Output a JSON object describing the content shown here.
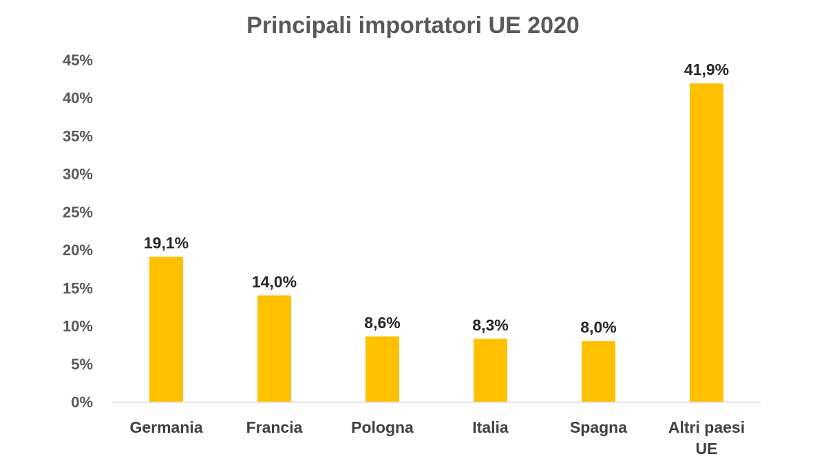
{
  "chart_data": {
    "type": "bar",
    "title": "Principali importatori UE 2020",
    "categories": [
      [
        "Germania"
      ],
      [
        "Francia"
      ],
      [
        "Pologna"
      ],
      [
        "Italia"
      ],
      [
        "Spagna"
      ],
      [
        "Altri paesi",
        "UE"
      ]
    ],
    "values": [
      19.1,
      14.0,
      8.6,
      8.3,
      8.0,
      41.9
    ],
    "data_labels": [
      "19,1%",
      "14,0%",
      "8,6%",
      "8,3%",
      "8,0%",
      "41,9%"
    ],
    "ylim": [
      0,
      45
    ],
    "yticks": [
      0,
      5,
      10,
      15,
      20,
      25,
      30,
      35,
      40,
      45
    ],
    "ytick_labels": [
      "0%",
      "5%",
      "10%",
      "15%",
      "20%",
      "25%",
      "30%",
      "35%",
      "40%",
      "45%"
    ],
    "xlabel": "",
    "ylabel": "",
    "grid": false,
    "legend": "none",
    "colors": {
      "bar": "#FFC000",
      "axis": "#D9D9D9",
      "title": "#595959",
      "labels": "#404040"
    }
  }
}
